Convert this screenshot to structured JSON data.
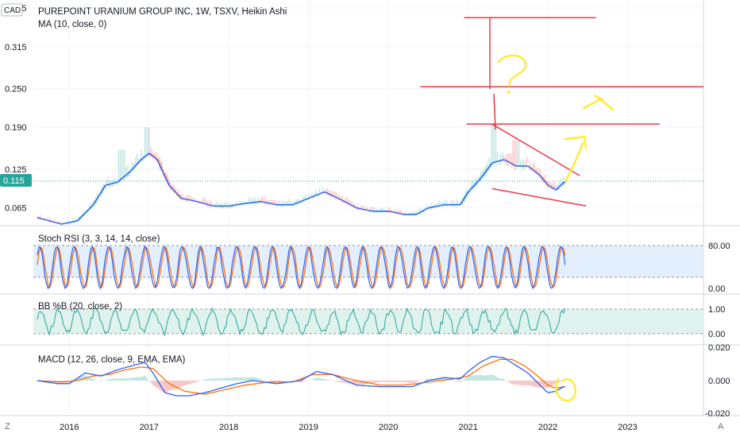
{
  "header": {
    "currency": "CAD",
    "title": "PUREPOINT URANIUM GROUP INC, 1W, TSXV, Heikin Ashi",
    "ma_label": "MA (10, close, 0)",
    "last_price": "0.115"
  },
  "panels": {
    "stoch_label": "Stoch RSI (3, 3, 14, 14, close)",
    "bbp_label": "BB %B (20, close, 2)",
    "macd_label": "MACD (12, 26, close, 9, EMA, EMA)"
  },
  "corner": {
    "left_btn": "Z",
    "right_btn": "A"
  },
  "colors": {
    "up": "#26a69a",
    "up_light": "#b2dfdb",
    "down": "#ef5350",
    "down_light": "#f7b8b6",
    "ma": "#2962ff",
    "stoch_k": "#2962ff",
    "stoch_d": "#ff6d00",
    "bbp": "#26a69a",
    "macd": "#2962ff",
    "signal": "#ff6d00",
    "trendline": "#f23645",
    "annotation": "#ffeb3b",
    "stoch_band": "#e3effd",
    "bbp_band": "#e0f2ee",
    "price_tag": "#26a69a"
  },
  "chart_data": [
    {
      "type": "candlestick",
      "title": "PUREPOINT URANIUM GROUP INC, 1W, TSXV, Heikin Ashi",
      "ylim": [
        0.04,
        0.38
      ],
      "y_ticks": [
        "0.375",
        "0.315",
        "0.250",
        "0.190",
        "0.125",
        "0.065"
      ],
      "x_ticks": [
        "2016",
        "2017",
        "2018",
        "2019",
        "2020",
        "2021",
        "2022",
        "2023"
      ],
      "xlim": [
        2015.55,
        2023.95
      ],
      "last_value": 0.115,
      "series": [
        {
          "name": "MA (10, close, 0)",
          "x": [
            2015.6,
            2015.9,
            2016.1,
            2016.3,
            2016.45,
            2016.6,
            2016.75,
            2016.9,
            2017.0,
            2017.1,
            2017.25,
            2017.4,
            2017.6,
            2017.8,
            2018.0,
            2018.2,
            2018.4,
            2018.6,
            2018.8,
            2019.0,
            2019.2,
            2019.4,
            2019.6,
            2019.8,
            2020.0,
            2020.2,
            2020.35,
            2020.5,
            2020.7,
            2020.9,
            2021.0,
            2021.15,
            2021.3,
            2021.45,
            2021.6,
            2021.75,
            2021.9,
            2022.0,
            2022.1,
            2022.2
          ],
          "values": [
            0.05,
            0.04,
            0.045,
            0.07,
            0.1,
            0.105,
            0.12,
            0.14,
            0.15,
            0.14,
            0.1,
            0.08,
            0.075,
            0.068,
            0.068,
            0.072,
            0.075,
            0.07,
            0.07,
            0.08,
            0.09,
            0.078,
            0.065,
            0.06,
            0.06,
            0.055,
            0.055,
            0.065,
            0.07,
            0.07,
            0.09,
            0.11,
            0.135,
            0.14,
            0.13,
            0.13,
            0.115,
            0.1,
            0.093,
            0.105
          ]
        }
      ],
      "annotations": [
        {
          "kind": "horizontal",
          "value": 0.36,
          "x_from": 2020.95,
          "x_to": 2022.6
        },
        {
          "kind": "horizontal",
          "value": 0.253,
          "x_from": 2020.4,
          "x_to": 2023.95
        },
        {
          "kind": "horizontal",
          "value": 0.195,
          "x_from": 2020.98,
          "x_to": 2023.4
        },
        {
          "kind": "trend",
          "from": [
            2021.3,
            0.195
          ],
          "to": [
            2022.4,
            0.115
          ]
        },
        {
          "kind": "trend",
          "from": [
            2021.3,
            0.095
          ],
          "to": [
            2022.48,
            0.068
          ]
        },
        {
          "kind": "question_mark"
        },
        {
          "kind": "arrow",
          "target": 0.19
        },
        {
          "kind": "arrow",
          "target": 0.25
        },
        {
          "kind": "circle",
          "panel": "MACD"
        }
      ]
    },
    {
      "type": "line",
      "title": "Stoch RSI (3, 3, 14, 14, close)",
      "ylim": [
        0,
        100
      ],
      "y_ticks": [
        "80.00",
        "0.00"
      ],
      "bands": [
        20,
        80
      ],
      "series": [
        {
          "name": "K"
        },
        {
          "name": "D"
        }
      ]
    },
    {
      "type": "line",
      "title": "BB %B (20, close, 2)",
      "ylim": [
        -0.15,
        1.2
      ],
      "y_ticks": [
        "1.00",
        "0.00"
      ],
      "bands": [
        0,
        1
      ]
    },
    {
      "type": "line",
      "title": "MACD (12, 26, close, 9, EMA, EMA)",
      "ylim": [
        -0.022,
        0.022
      ],
      "y_ticks": [
        "0.020",
        "0.000",
        "-0.020"
      ],
      "macd_points": {
        "x": [
          2015.6,
          2015.85,
          2016.0,
          2016.2,
          2016.4,
          2016.6,
          2016.8,
          2016.95,
          2017.05,
          2017.2,
          2017.35,
          2017.5,
          2017.7,
          2017.9,
          2018.1,
          2018.3,
          2018.6,
          2018.9,
          2019.1,
          2019.3,
          2019.6,
          2019.9,
          2020.1,
          2020.3,
          2020.5,
          2020.7,
          2020.9,
          2021.0,
          2021.15,
          2021.3,
          2021.45,
          2021.6,
          2021.75,
          2021.9,
          2022.0,
          2022.1,
          2022.2
        ],
        "values": [
          0,
          -0.002,
          -0.002,
          0.005,
          0.003,
          0.007,
          0.01,
          0.012,
          0.005,
          -0.008,
          -0.01,
          -0.01,
          -0.008,
          -0.005,
          -0.002,
          0.0,
          -0.002,
          0.0,
          0.006,
          0.004,
          -0.003,
          -0.004,
          -0.004,
          -0.004,
          0.0,
          0.002,
          0.001,
          0.006,
          0.012,
          0.016,
          0.015,
          0.01,
          0.005,
          -0.003,
          -0.008,
          -0.007,
          -0.004
        ]
      },
      "signal_points": {
        "x": [
          2015.6,
          2015.9,
          2016.1,
          2016.3,
          2016.5,
          2016.7,
          2016.9,
          2017.05,
          2017.25,
          2017.45,
          2017.7,
          2017.95,
          2018.2,
          2018.5,
          2018.8,
          2019.05,
          2019.3,
          2019.6,
          2019.9,
          2020.2,
          2020.5,
          2020.8,
          2021.0,
          2021.2,
          2021.4,
          2021.55,
          2021.7,
          2021.85,
          2022.0,
          2022.1,
          2022.2
        ],
        "values": [
          0,
          -0.001,
          0.0,
          0.003,
          0.004,
          0.007,
          0.009,
          0.008,
          -0.002,
          -0.007,
          -0.009,
          -0.006,
          -0.003,
          -0.001,
          -0.001,
          0.004,
          0.004,
          0.0,
          -0.003,
          -0.003,
          -0.001,
          0.001,
          0.003,
          0.01,
          0.014,
          0.014,
          0.01,
          0.004,
          -0.003,
          -0.005,
          -0.004
        ]
      }
    }
  ]
}
